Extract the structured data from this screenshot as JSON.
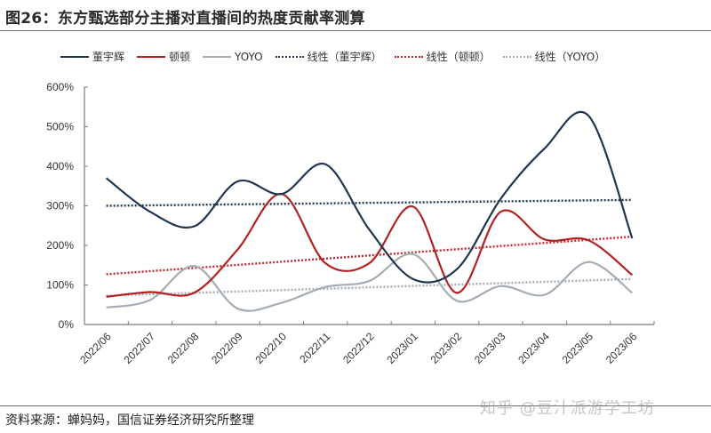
{
  "header": {
    "title": "图26：东方甄选部分主播对直播间的热度贡献率测算"
  },
  "footer": {
    "source": "资料来源：蝉妈妈，国信证券经济研究所整理",
    "watermark": "知乎 @豆汁派游学工坊"
  },
  "legend": [
    {
      "label": "董宇辉",
      "style": "solid",
      "color": "#1f3550"
    },
    {
      "label": "顿顿",
      "style": "solid",
      "color": "#b22222"
    },
    {
      "label": "YOYO",
      "style": "solid",
      "color": "#a4acb6"
    },
    {
      "label": "线性（董宇辉）",
      "style": "dotted",
      "color": "#1f3550"
    },
    {
      "label": "线性（顿顿）",
      "style": "dotted",
      "color": "#c0282d"
    },
    {
      "label": "线性（YOYO）",
      "style": "dotted",
      "color": "#a4acb6"
    }
  ],
  "chart_data": {
    "type": "line",
    "title": "图26：东方甄选部分主播对直播间的热度贡献率测算",
    "xlabel": "",
    "ylabel": "",
    "categories": [
      "2022/06",
      "2022/07",
      "2022/08",
      "2022/09",
      "2022/10",
      "2022/11",
      "2022/12",
      "2023/01",
      "2023/02",
      "2023/03",
      "2023/04",
      "2023/05",
      "2023/06"
    ],
    "yticks": [
      "0%",
      "100%",
      "200%",
      "300%",
      "400%",
      "500%",
      "600%"
    ],
    "ylim": [
      0,
      600
    ],
    "y_unit": "%",
    "grid": false,
    "legend_position": "top",
    "smooth": true,
    "series": [
      {
        "name": "董宇辉",
        "color": "#1f3550",
        "values": [
          370,
          285,
          248,
          362,
          330,
          405,
          240,
          115,
          140,
          318,
          445,
          528,
          218
        ]
      },
      {
        "name": "顿顿",
        "color": "#b22222",
        "values": [
          70,
          82,
          80,
          190,
          330,
          155,
          155,
          298,
          80,
          285,
          215,
          213,
          125
        ]
      },
      {
        "name": "YOYO",
        "color": "#a4acb6",
        "values": [
          43,
          62,
          148,
          40,
          55,
          95,
          110,
          178,
          60,
          97,
          75,
          158,
          80
        ]
      }
    ],
    "trendlines": [
      {
        "name": "线性（董宇辉）",
        "color": "#1f3550",
        "start": 300,
        "end": 315
      },
      {
        "name": "线性（顿顿）",
        "color": "#c0282d",
        "start": 127,
        "end": 222
      },
      {
        "name": "线性（YOYO）",
        "color": "#a4acb6",
        "start": 73,
        "end": 115
      }
    ]
  }
}
